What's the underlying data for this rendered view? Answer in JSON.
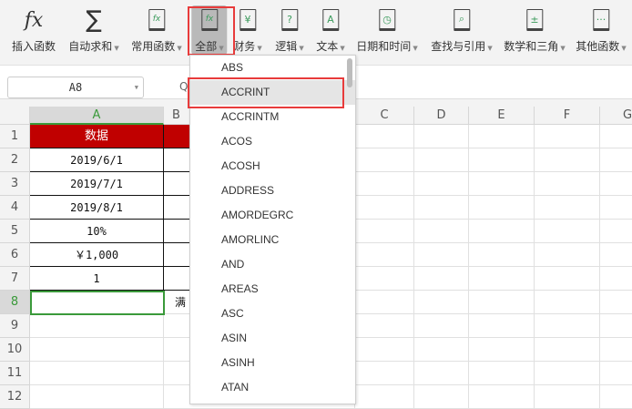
{
  "toolbar": {
    "items": [
      {
        "label": "插入函数",
        "icon": "fx-icon",
        "glyph": "fx"
      },
      {
        "label": "自动求和",
        "icon": "sum-icon",
        "glyph": "∑",
        "dropdown": true
      },
      {
        "label": "常用函数",
        "icon": "favorite-function-icon",
        "glyph": "fx",
        "dropdown": true
      },
      {
        "label": "全部",
        "icon": "all-functions-icon",
        "glyph": "fx",
        "dropdown": true,
        "active": true
      },
      {
        "label": "财务",
        "icon": "finance-book-icon",
        "glyph": "¥",
        "dropdown": true
      },
      {
        "label": "逻辑",
        "icon": "logic-book-icon",
        "glyph": "?",
        "dropdown": true
      },
      {
        "label": "文本",
        "icon": "text-book-icon",
        "glyph": "A",
        "dropdown": true
      },
      {
        "label": "日期和时间",
        "icon": "datetime-book-icon",
        "glyph": "◷",
        "dropdown": true
      },
      {
        "label": "查找与引用",
        "icon": "lookup-book-icon",
        "glyph": "⌕",
        "dropdown": true
      },
      {
        "label": "数学和三角",
        "icon": "math-book-icon",
        "glyph": "±",
        "dropdown": true
      },
      {
        "label": "其他函数",
        "icon": "other-book-icon",
        "glyph": "···",
        "dropdown": true
      }
    ]
  },
  "namebox": {
    "value": "A8"
  },
  "columns": [
    "A",
    "B",
    "C",
    "D",
    "E",
    "F",
    "G"
  ],
  "rows": [
    "1",
    "2",
    "3",
    "4",
    "5",
    "6",
    "7",
    "8",
    "9",
    "10",
    "11",
    "12"
  ],
  "cells": {
    "A": [
      "数据",
      "2019/6/1",
      "2019/7/1",
      "2019/8/1",
      "10%",
      "￥1,000",
      "1",
      ""
    ],
    "B8": "满"
  },
  "dropdown": {
    "items": [
      "ABS",
      "ACCRINT",
      "ACCRINTM",
      "ACOS",
      "ACOSH",
      "ADDRESS",
      "AMORDEGRC",
      "AMORLINC",
      "AND",
      "AREAS",
      "ASC",
      "ASIN",
      "ASINH",
      "ATAN"
    ],
    "highlighted": "ACCRINT"
  },
  "colors": {
    "header_fill": "#c00000",
    "selection": "#3a9a3a",
    "highlight_box": "#e83b3b"
  }
}
